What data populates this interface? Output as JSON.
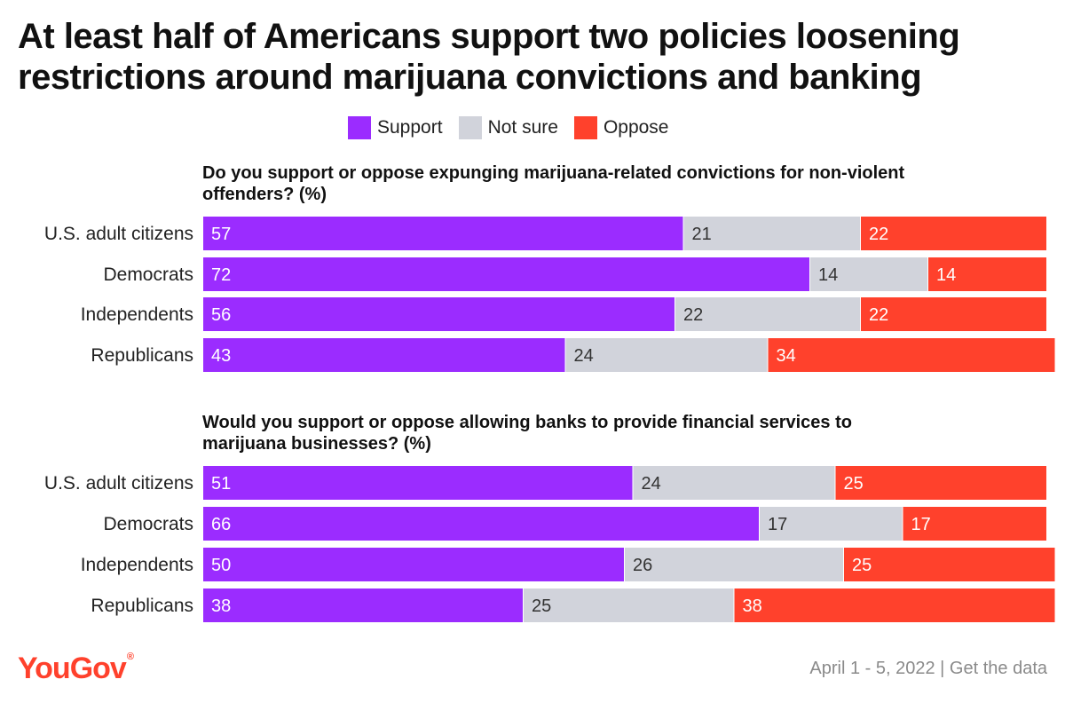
{
  "title_lines": [
    "At least half of Americans support two policies loosening",
    "restrictions around marijuana convictions and banking"
  ],
  "legend": [
    {
      "label": "Support",
      "color": "#9b2cff"
    },
    {
      "label": "Not sure",
      "color": "#d1d3db"
    },
    {
      "label": "Oppose",
      "color": "#ff412c"
    }
  ],
  "footer": {
    "brand": "YouGov",
    "source": "April 1 - 5, 2022 | Get the data"
  },
  "chart_data": [
    {
      "type": "bar",
      "orientation": "horizontal-stacked",
      "title_lines": [
        "Do you support or oppose expunging marijuana-related convictions for non-violent",
        "offenders? (%)"
      ],
      "categories": [
        "U.S. adult citizens",
        "Democrats",
        "Independents",
        "Republicans"
      ],
      "series": [
        {
          "name": "Support",
          "values": [
            57,
            72,
            56,
            43
          ]
        },
        {
          "name": "Not sure",
          "values": [
            21,
            14,
            22,
            24
          ]
        },
        {
          "name": "Oppose",
          "values": [
            22,
            14,
            22,
            34
          ]
        }
      ],
      "xlim": [
        0,
        100
      ]
    },
    {
      "type": "bar",
      "orientation": "horizontal-stacked",
      "title_lines": [
        "Would you support or oppose allowing banks to provide financial services to",
        "marijuana businesses? (%)"
      ],
      "categories": [
        "U.S. adult citizens",
        "Democrats",
        "Independents",
        "Republicans"
      ],
      "series": [
        {
          "name": "Support",
          "values": [
            51,
            66,
            50,
            38
          ]
        },
        {
          "name": "Not sure",
          "values": [
            24,
            17,
            26,
            25
          ]
        },
        {
          "name": "Oppose",
          "values": [
            25,
            17,
            25,
            38
          ]
        }
      ],
      "xlim": [
        0,
        100
      ]
    }
  ]
}
